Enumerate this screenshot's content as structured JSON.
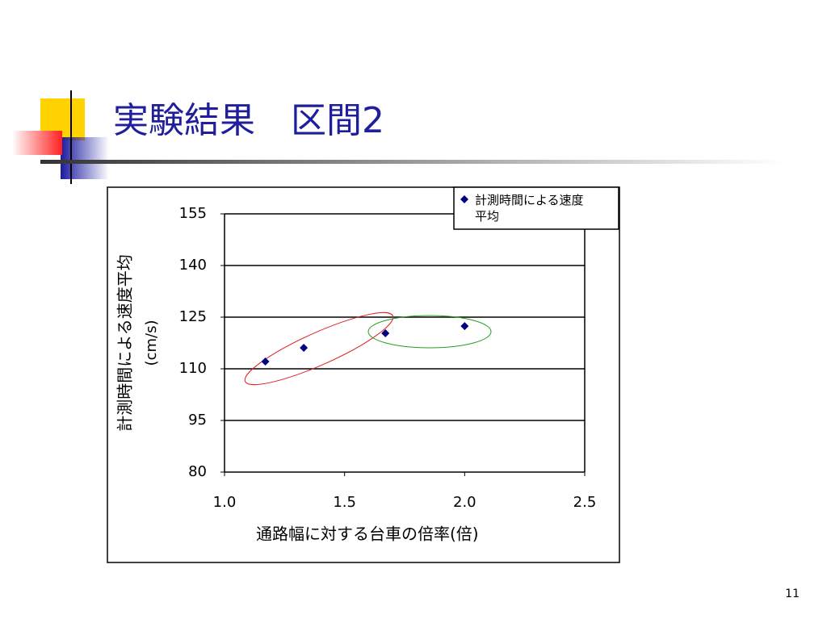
{
  "slide_title": "実験結果　区間2",
  "page_number": "11",
  "chart_data": {
    "type": "scatter",
    "xlabel": "通路幅に対する台車の倍率(倍)",
    "ylabel": [
      "計測時間による速度平均",
      "(cm/s)"
    ],
    "series": [
      {
        "name": "計測時間による速度平均",
        "color": "#000080",
        "x": [
          1.17,
          1.33,
          1.67,
          2.0
        ],
        "values": [
          112.1,
          116.1,
          120.3,
          122.4
        ]
      }
    ],
    "xlim": [
      1.0,
      2.5
    ],
    "xticks": [
      {
        "value": 1.0,
        "label": "1.0"
      },
      1.5,
      {
        "value": 2.0,
        "label": "2.0"
      },
      2.5
    ],
    "ylim": [
      80,
      155
    ],
    "yticks": [
      80,
      95,
      110,
      125,
      140,
      155
    ],
    "grid": true,
    "legend": "top-right"
  }
}
